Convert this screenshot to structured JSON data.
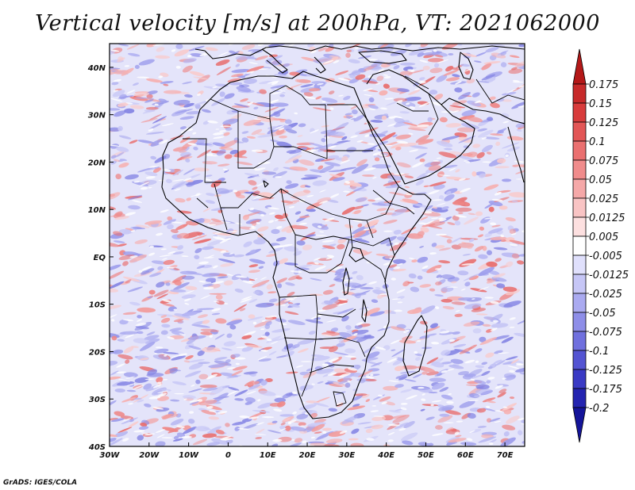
{
  "title": "Vertical velocity [m/s] at 200hPa, VT: 2021062000",
  "credit": "GrADS: IGES/COLA",
  "chart_data": {
    "type": "heatmap",
    "variable": "Vertical velocity",
    "units": "m/s",
    "level": "200hPa",
    "valid_time": "2021062000",
    "lon_range": [
      -30,
      75
    ],
    "lat_range": [
      -40,
      45
    ],
    "x_tick_labels": [
      "30W",
      "20W",
      "10W",
      "0",
      "10E",
      "20E",
      "30E",
      "40E",
      "50E",
      "60E",
      "70E"
    ],
    "x_tick_values": [
      -30,
      -20,
      -10,
      0,
      10,
      20,
      30,
      40,
      50,
      60,
      70
    ],
    "y_tick_labels": [
      "40N",
      "30N",
      "20N",
      "10N",
      "EQ",
      "10S",
      "20S",
      "30S",
      "40S"
    ],
    "y_tick_values": [
      40,
      30,
      20,
      10,
      0,
      -10,
      -20,
      -30,
      -40
    ],
    "colorbar": {
      "labels": [
        "0.175",
        "0.15",
        "0.125",
        "0.1",
        "0.075",
        "0.05",
        "0.025",
        "0.0125",
        "0.005",
        "-0.005",
        "-0.0125",
        "-0.025",
        "-0.05",
        "-0.075",
        "-0.1",
        "-0.125",
        "-0.175",
        "-0.2"
      ],
      "colors": [
        "#b41818",
        "#c72a2a",
        "#d83c3c",
        "#e25656",
        "#ea7070",
        "#f08c8c",
        "#f5a8a8",
        "#f9c4c4",
        "#fde0e0",
        "#ffffff",
        "#e0e0fc",
        "#c6c6f6",
        "#aaaaf0",
        "#8e8ee8",
        "#7070de",
        "#5454d2",
        "#3a3ac4",
        "#2424b0",
        "#14149a"
      ]
    }
  }
}
